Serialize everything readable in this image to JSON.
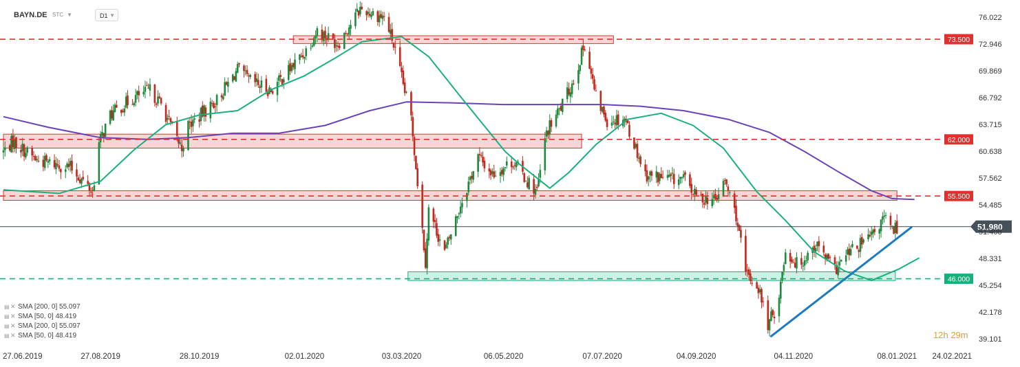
{
  "header": {
    "symbol": "BAYN.DE",
    "symbol_type": "STC",
    "timeframe": "D1"
  },
  "legend": [
    "SMA [200, 0] 55.097",
    "SMA [50, 0] 48.419",
    "SMA [200, 0] 55.097",
    "SMA [50, 0] 48.419"
  ],
  "countdown": {
    "hours": "12",
    "h_unit": "h",
    "minutes": "29",
    "m_unit": "m"
  },
  "colors": {
    "resistance": "#e03030",
    "support": "#18b07a",
    "sma50": "#19b080",
    "sma200": "#6a42b8",
    "trendline": "#1a7bc4",
    "bull": "#1e8a3c",
    "bear": "#c4281c",
    "price_badge": "#46505a"
  },
  "chart_data": {
    "type": "candlestick",
    "symbol": "BAYN.DE",
    "timeframe": "D1",
    "y_axis_ticks": [
      "76.022",
      "72.946",
      "69.869",
      "66.792",
      "63.715",
      "60.638",
      "57.562",
      "54.485",
      "51.408",
      "48.331",
      "45.254",
      "42.178",
      "39.101"
    ],
    "x_axis_ticks": [
      "27.06.2019",
      "27.08.2019",
      "28.10.2019",
      "02.01.2020",
      "03.03.2020",
      "06.05.2020",
      "07.07.2020",
      "04.09.2020",
      "04.11.2020",
      "08.01.2021",
      "24.02.2021"
    ],
    "ylim": [
      38.0,
      78.0
    ],
    "last_price": 51.98,
    "last_price_label": "51.980",
    "levels": [
      {
        "price": 73.5,
        "label": "73.500",
        "kind": "resistance"
      },
      {
        "price": 62.0,
        "label": "62.000",
        "kind": "resistance"
      },
      {
        "price": 55.5,
        "label": "55.500",
        "kind": "resistance"
      },
      {
        "price": 46.0,
        "label": "46.000",
        "kind": "support"
      }
    ],
    "zones": [
      {
        "start": "26.12.2019",
        "end": "14.07.2020",
        "low": 73.0,
        "high": 73.9,
        "kind": "resistance"
      },
      {
        "start": "27.06.2019",
        "end": "24.06.2020",
        "low": 61.0,
        "high": 62.6,
        "kind": "resistance"
      },
      {
        "start": "27.06.2019",
        "end": "08.01.2021",
        "low": 55.0,
        "high": 56.1,
        "kind": "resistance"
      },
      {
        "start": "07.03.2020",
        "end": "07.01.2021",
        "low": 45.8,
        "high": 46.8,
        "kind": "support"
      }
    ],
    "trendline": {
      "start": [
        "21.10.2020",
        39.4
      ],
      "end": [
        "17.01.2021",
        51.9
      ]
    },
    "series": [
      {
        "name": "SMA [200, 0] 55.097",
        "role": "sma200",
        "values": [
          [
            "27.06.2019",
            64.6
          ],
          [
            "25.07.2019",
            63.4
          ],
          [
            "27.08.2019",
            62.2
          ],
          [
            "25.09.2019",
            62.0
          ],
          [
            "21.10.2019",
            62.2
          ],
          [
            "18.11.2019",
            62.7
          ],
          [
            "17.12.2019",
            62.7
          ],
          [
            "15.01.2020",
            63.6
          ],
          [
            "12.02.2020",
            65.3
          ],
          [
            "06.03.2020",
            66.3
          ],
          [
            "03.04.2020",
            66.2
          ],
          [
            "06.05.2020",
            66.0
          ],
          [
            "05.06.2020",
            66.0
          ],
          [
            "07.07.2020",
            66.0
          ],
          [
            "31.07.2020",
            65.8
          ],
          [
            "27.08.2020",
            65.3
          ],
          [
            "24.09.2020",
            64.3
          ],
          [
            "20.10.2020",
            62.8
          ],
          [
            "11.11.2020",
            60.6
          ],
          [
            "02.12.2020",
            58.3
          ],
          [
            "23.12.2020",
            56.1
          ],
          [
            "05.01.2021",
            55.2
          ],
          [
            "19.01.2021",
            55.1
          ]
        ]
      },
      {
        "name": "SMA [50, 0] 48.419",
        "role": "sma50",
        "values": [
          [
            "27.06.2019",
            56.2
          ],
          [
            "01.08.2019",
            55.8
          ],
          [
            "27.08.2019",
            57.2
          ],
          [
            "17.09.2019",
            60.8
          ],
          [
            "07.10.2019",
            63.7
          ],
          [
            "28.10.2019",
            64.8
          ],
          [
            "21.11.2019",
            65.3
          ],
          [
            "12.12.2019",
            67.7
          ],
          [
            "02.01.2020",
            69.3
          ],
          [
            "21.01.2020",
            71.3
          ],
          [
            "07.02.2020",
            73.2
          ],
          [
            "03.03.2020",
            73.8
          ],
          [
            "20.03.2020",
            71.5
          ],
          [
            "09.04.2020",
            66.9
          ],
          [
            "07.05.2020",
            60.6
          ],
          [
            "15.05.2020",
            59.3
          ],
          [
            "04.06.2020",
            56.4
          ],
          [
            "16.06.2020",
            58.2
          ],
          [
            "03.07.2020",
            61.4
          ],
          [
            "23.07.2020",
            64.3
          ],
          [
            "13.08.2020",
            65.0
          ],
          [
            "02.09.2020",
            63.6
          ],
          [
            "21.09.2020",
            61.0
          ],
          [
            "12.10.2020",
            56.0
          ],
          [
            "30.10.2020",
            52.7
          ],
          [
            "17.11.2020",
            49.1
          ],
          [
            "06.12.2020",
            46.9
          ],
          [
            "23.12.2020",
            45.8
          ],
          [
            "09.01.2021",
            47.1
          ],
          [
            "22.01.2021",
            48.4
          ]
        ]
      }
    ]
  }
}
